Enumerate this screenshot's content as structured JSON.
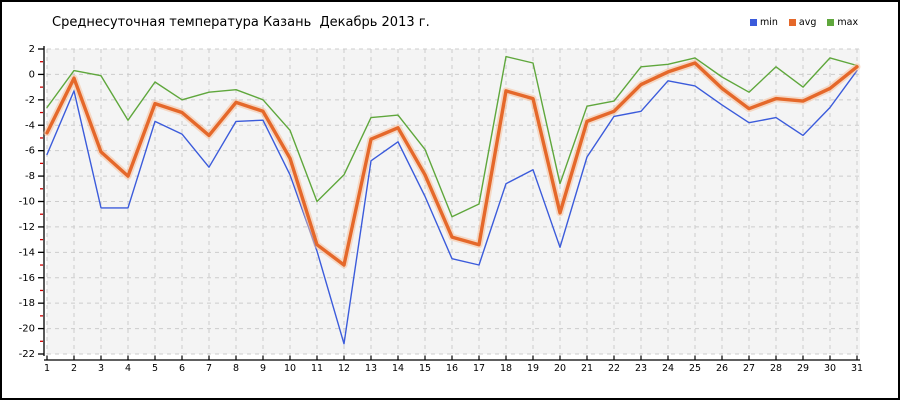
{
  "title": "Среднесуточная температура Казань  Декабрь 2013 г.",
  "chart_data": {
    "type": "line",
    "title": "Среднесуточная температура Казань  Декабрь 2013 г.",
    "xlabel": "",
    "ylabel": "",
    "x": [
      1,
      2,
      3,
      4,
      5,
      6,
      7,
      8,
      9,
      10,
      11,
      12,
      13,
      14,
      15,
      16,
      17,
      18,
      19,
      20,
      21,
      22,
      23,
      24,
      25,
      26,
      27,
      28,
      29,
      30,
      31
    ],
    "ylim": [
      -22,
      2
    ],
    "yticks": [
      2,
      0,
      -2,
      -4,
      -6,
      -8,
      -10,
      -12,
      -14,
      -16,
      -18,
      -20,
      -22
    ],
    "minor_tick_step": 1,
    "grid": true,
    "legend_position": "top-right",
    "series": [
      {
        "name": "min",
        "color": "#3b5bdb",
        "width": 1.4,
        "values": [
          -6.3,
          -1.3,
          -10.5,
          -10.5,
          -3.7,
          -4.7,
          -7.3,
          -3.7,
          -3.6,
          -7.9,
          -13.9,
          -21.2,
          -6.8,
          -5.3,
          -9.6,
          -14.5,
          -15.0,
          -8.6,
          -7.5,
          -13.6,
          -6.5,
          -3.3,
          -2.9,
          -0.5,
          -0.9,
          -2.4,
          -3.8,
          -3.4,
          -4.8,
          -2.6,
          0.3
        ]
      },
      {
        "name": "avg",
        "color": "#e5682a",
        "halo": "#f6c09a",
        "width": 3.4,
        "values": [
          -4.6,
          -0.3,
          -6.1,
          -8.0,
          -2.3,
          -3.0,
          -4.8,
          -2.2,
          -2.9,
          -6.6,
          -13.4,
          -15.0,
          -5.1,
          -4.2,
          -7.9,
          -12.8,
          -13.4,
          -1.3,
          -1.9,
          -10.9,
          -3.7,
          -2.9,
          -0.8,
          0.2,
          0.9,
          -1.1,
          -2.7,
          -1.9,
          -2.1,
          -1.1,
          0.6
        ]
      },
      {
        "name": "max",
        "color": "#5fa73c",
        "width": 1.4,
        "values": [
          -2.6,
          0.3,
          -0.1,
          -3.6,
          -0.6,
          -2.0,
          -1.4,
          -1.2,
          -2.0,
          -4.4,
          -10.0,
          -7.9,
          -3.4,
          -3.2,
          -5.9,
          -11.2,
          -10.2,
          1.4,
          0.9,
          -8.6,
          -2.5,
          -2.1,
          0.6,
          0.8,
          1.3,
          -0.2,
          -1.4,
          0.6,
          -1.0,
          1.3,
          0.7
        ]
      }
    ],
    "colors": {
      "plot_bg": "#f4f4f4",
      "grid": "#cccccc",
      "axis": "#000000",
      "minor_tick": "#cc0000",
      "text": "#000000"
    }
  }
}
